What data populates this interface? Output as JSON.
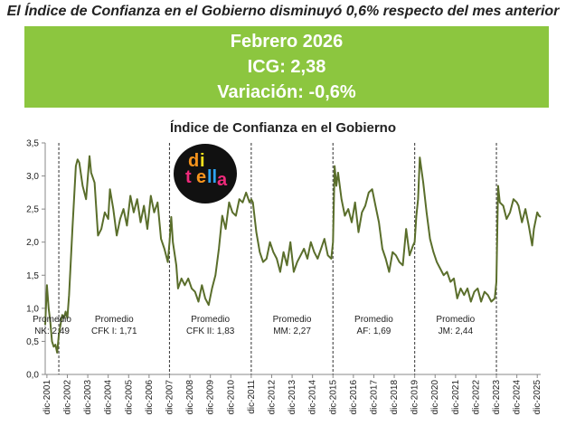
{
  "headline": "El Índice de Confianza en el Gobierno disminuyó 0,6% respecto del mes anterior",
  "banner": {
    "period": "Febrero 2026",
    "icg": "ICG: 2,38",
    "variation": "Variación: -0,6%",
    "color": "#8cc63f"
  },
  "logo": {
    "alt_text": "di tella",
    "letters": [
      "d",
      "i",
      "t",
      "e",
      "ll",
      "a"
    ],
    "colors": [
      "#f7941d",
      "#f7e11d",
      "#ee2a7b",
      "#f7941d",
      "#2ea3f2",
      "#ee2a7b"
    ]
  },
  "chart_data": {
    "type": "line",
    "title": "Índice de Confianza en el Gobierno",
    "xlabel": "",
    "ylabel": "",
    "ylim": [
      0,
      3.5
    ],
    "yticks": [
      "0,0",
      "0,5",
      "1,0",
      "1,5",
      "2,0",
      "2,5",
      "3,0",
      "3,5"
    ],
    "xticks": [
      "dic-2001",
      "dic-2002",
      "dic-2003",
      "dic-2004",
      "dic-2005",
      "dic-2006",
      "dic-2007",
      "dic-2008",
      "dic-2009",
      "dic-2010",
      "dic-2011",
      "dic-2012",
      "dic-2013",
      "dic-2014",
      "dic-2015",
      "dic-2016",
      "dic-2017",
      "dic-2018",
      "dic-2019",
      "dic-2020",
      "dic-2021",
      "dic-2022",
      "dic-2023",
      "dic-2024",
      "dic-2025"
    ],
    "x_range": [
      "2001-11",
      "2026-02"
    ],
    "line_color": "#5a6e2b",
    "grid": false,
    "legend": "none",
    "period_dividers": [
      "2002-07",
      "2007-12",
      "2011-12",
      "2015-12",
      "2019-12",
      "2023-12"
    ],
    "period_averages": [
      {
        "label": "Promedio",
        "value": "NK: 2,49"
      },
      {
        "label": "Promedio",
        "value": "CFK I: 1,71"
      },
      {
        "label": "Promedio",
        "value": "CFK II: 1,83"
      },
      {
        "label": "Promedio",
        "value": "MM: 2,27"
      },
      {
        "label": "Promedio",
        "value": "AF: 1,69"
      },
      {
        "label": "Promedio",
        "value": "JM: 2,44"
      }
    ],
    "series": [
      {
        "points": [
          [
            "2001-11",
            0.75
          ],
          [
            "2001-12",
            1.35
          ],
          [
            "2002-01",
            1.0
          ],
          [
            "2002-02",
            0.8
          ],
          [
            "2002-03",
            0.5
          ],
          [
            "2002-04",
            0.42
          ],
          [
            "2002-05",
            0.45
          ],
          [
            "2002-06",
            0.33
          ],
          [
            "2002-07",
            0.6
          ],
          [
            "2002-08",
            0.75
          ],
          [
            "2002-09",
            0.9
          ],
          [
            "2002-10",
            0.85
          ],
          [
            "2002-11",
            0.95
          ],
          [
            "2002-12",
            0.85
          ],
          [
            "2003-01",
            1.2
          ],
          [
            "2003-03",
            2.2
          ],
          [
            "2003-05",
            3.15
          ],
          [
            "2003-06",
            3.25
          ],
          [
            "2003-07",
            3.2
          ],
          [
            "2003-09",
            2.85
          ],
          [
            "2003-11",
            2.65
          ],
          [
            "2004-01",
            3.3
          ],
          [
            "2004-02",
            3.05
          ],
          [
            "2004-04",
            2.9
          ],
          [
            "2004-06",
            2.1
          ],
          [
            "2004-08",
            2.2
          ],
          [
            "2004-10",
            2.45
          ],
          [
            "2004-12",
            2.35
          ],
          [
            "2005-01",
            2.8
          ],
          [
            "2005-03",
            2.5
          ],
          [
            "2005-05",
            2.1
          ],
          [
            "2005-07",
            2.35
          ],
          [
            "2005-09",
            2.5
          ],
          [
            "2005-11",
            2.25
          ],
          [
            "2006-01",
            2.7
          ],
          [
            "2006-03",
            2.45
          ],
          [
            "2006-05",
            2.65
          ],
          [
            "2006-07",
            2.3
          ],
          [
            "2006-09",
            2.55
          ],
          [
            "2006-11",
            2.2
          ],
          [
            "2007-01",
            2.7
          ],
          [
            "2007-03",
            2.45
          ],
          [
            "2007-05",
            2.6
          ],
          [
            "2007-07",
            2.05
          ],
          [
            "2007-09",
            1.9
          ],
          [
            "2007-11",
            1.7
          ],
          [
            "2007-12",
            2.0
          ],
          [
            "2008-01",
            2.38
          ],
          [
            "2008-02",
            2.0
          ],
          [
            "2008-04",
            1.65
          ],
          [
            "2008-05",
            1.3
          ],
          [
            "2008-07",
            1.45
          ],
          [
            "2008-09",
            1.35
          ],
          [
            "2008-11",
            1.45
          ],
          [
            "2009-01",
            1.3
          ],
          [
            "2009-03",
            1.25
          ],
          [
            "2009-05",
            1.1
          ],
          [
            "2009-07",
            1.35
          ],
          [
            "2009-09",
            1.15
          ],
          [
            "2009-11",
            1.05
          ],
          [
            "2010-01",
            1.3
          ],
          [
            "2010-03",
            1.5
          ],
          [
            "2010-05",
            1.9
          ],
          [
            "2010-07",
            2.4
          ],
          [
            "2010-09",
            2.2
          ],
          [
            "2010-11",
            2.6
          ],
          [
            "2011-01",
            2.45
          ],
          [
            "2011-03",
            2.4
          ],
          [
            "2011-05",
            2.65
          ],
          [
            "2011-07",
            2.6
          ],
          [
            "2011-09",
            2.75
          ],
          [
            "2011-11",
            2.6
          ],
          [
            "2011-12",
            2.65
          ],
          [
            "2012-01",
            2.6
          ],
          [
            "2012-03",
            2.15
          ],
          [
            "2012-05",
            1.85
          ],
          [
            "2012-07",
            1.7
          ],
          [
            "2012-09",
            1.75
          ],
          [
            "2012-11",
            2.0
          ],
          [
            "2013-01",
            1.85
          ],
          [
            "2013-03",
            1.75
          ],
          [
            "2013-05",
            1.55
          ],
          [
            "2013-07",
            1.85
          ],
          [
            "2013-09",
            1.65
          ],
          [
            "2013-11",
            2.0
          ],
          [
            "2014-01",
            1.55
          ],
          [
            "2014-03",
            1.7
          ],
          [
            "2014-05",
            1.8
          ],
          [
            "2014-07",
            1.9
          ],
          [
            "2014-09",
            1.75
          ],
          [
            "2014-11",
            2.0
          ],
          [
            "2015-01",
            1.85
          ],
          [
            "2015-03",
            1.75
          ],
          [
            "2015-05",
            1.9
          ],
          [
            "2015-07",
            2.05
          ],
          [
            "2015-09",
            1.8
          ],
          [
            "2015-11",
            1.75
          ],
          [
            "2015-12",
            2.0
          ],
          [
            "2016-01",
            3.15
          ],
          [
            "2016-02",
            2.85
          ],
          [
            "2016-03",
            3.05
          ],
          [
            "2016-05",
            2.65
          ],
          [
            "2016-07",
            2.4
          ],
          [
            "2016-09",
            2.5
          ],
          [
            "2016-11",
            2.3
          ],
          [
            "2017-01",
            2.6
          ],
          [
            "2017-03",
            2.15
          ],
          [
            "2017-05",
            2.45
          ],
          [
            "2017-07",
            2.55
          ],
          [
            "2017-09",
            2.75
          ],
          [
            "2017-11",
            2.8
          ],
          [
            "2018-01",
            2.55
          ],
          [
            "2018-03",
            2.3
          ],
          [
            "2018-05",
            1.9
          ],
          [
            "2018-07",
            1.75
          ],
          [
            "2018-09",
            1.55
          ],
          [
            "2018-11",
            1.85
          ],
          [
            "2019-01",
            1.8
          ],
          [
            "2019-03",
            1.7
          ],
          [
            "2019-05",
            1.65
          ],
          [
            "2019-07",
            2.2
          ],
          [
            "2019-09",
            1.8
          ],
          [
            "2019-11",
            1.95
          ],
          [
            "2019-12",
            2.0
          ],
          [
            "2020-01",
            2.4
          ],
          [
            "2020-02",
            2.65
          ],
          [
            "2020-03",
            3.28
          ],
          [
            "2020-05",
            2.9
          ],
          [
            "2020-07",
            2.45
          ],
          [
            "2020-09",
            2.05
          ],
          [
            "2020-11",
            1.85
          ],
          [
            "2021-01",
            1.7
          ],
          [
            "2021-03",
            1.6
          ],
          [
            "2021-05",
            1.5
          ],
          [
            "2021-07",
            1.55
          ],
          [
            "2021-09",
            1.4
          ],
          [
            "2021-11",
            1.45
          ],
          [
            "2022-01",
            1.15
          ],
          [
            "2022-03",
            1.3
          ],
          [
            "2022-05",
            1.2
          ],
          [
            "2022-07",
            1.3
          ],
          [
            "2022-09",
            1.1
          ],
          [
            "2022-11",
            1.25
          ],
          [
            "2023-01",
            1.3
          ],
          [
            "2023-03",
            1.1
          ],
          [
            "2023-05",
            1.25
          ],
          [
            "2023-07",
            1.2
          ],
          [
            "2023-09",
            1.1
          ],
          [
            "2023-11",
            1.15
          ],
          [
            "2023-12",
            1.4
          ],
          [
            "2024-01",
            2.85
          ],
          [
            "2024-02",
            2.6
          ],
          [
            "2024-04",
            2.55
          ],
          [
            "2024-06",
            2.35
          ],
          [
            "2024-08",
            2.45
          ],
          [
            "2024-10",
            2.65
          ],
          [
            "2024-12",
            2.6
          ],
          [
            "2025-01",
            2.55
          ],
          [
            "2025-03",
            2.3
          ],
          [
            "2025-05",
            2.5
          ],
          [
            "2025-07",
            2.25
          ],
          [
            "2025-09",
            1.95
          ],
          [
            "2025-10",
            2.2
          ],
          [
            "2025-12",
            2.45
          ],
          [
            "2026-01",
            2.4
          ],
          [
            "2026-02",
            2.38
          ]
        ]
      }
    ]
  }
}
